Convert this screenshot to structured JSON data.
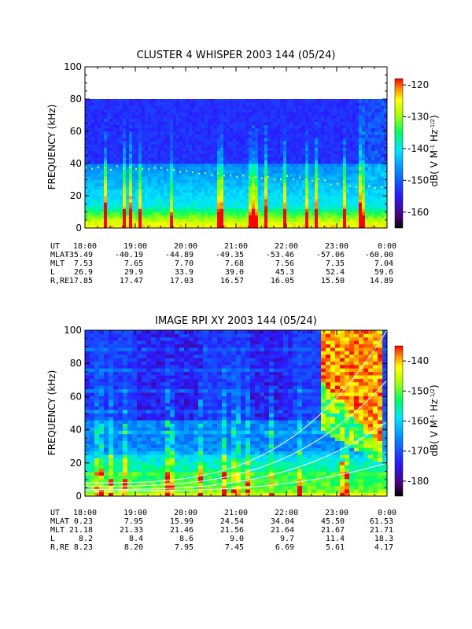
{
  "chart_data": [
    {
      "type": "heatmap",
      "title": "CLUSTER 4 WHISPER 2003 144 (05/24)",
      "ylabel": "FREQUENCY (kHz)",
      "colorbar_label": "dB( V M^-1 Hz^-1/2)",
      "colorbar_label_parts": [
        "dB( V M",
        "-1",
        " Hz",
        "-1/2",
        ")"
      ],
      "ylim": [
        0,
        100
      ],
      "data_ylim": [
        0,
        80
      ],
      "yticks": [
        "0",
        "20",
        "40",
        "60",
        "80",
        "100"
      ],
      "xlim": [
        "18:00",
        "0:00"
      ],
      "clim": [
        -165,
        -118
      ],
      "cticks": [
        "-120",
        "-130",
        "-140",
        "-150",
        "-160"
      ],
      "ephemeris": {
        "rows": [
          {
            "label": "UT",
            "values": [
              "18:00",
              "19:00",
              "20:00",
              "21:00",
              "22:00",
              "23:00",
              "0:00"
            ]
          },
          {
            "label": "MLAT",
            "values": [
              "-35.49",
              "-40.19",
              "-44.89",
              "-49.35",
              "-53.46",
              "-57.06",
              "-60.00"
            ]
          },
          {
            "label": "MLT",
            "values": [
              "7.53",
              "7.65",
              "7.70",
              "7.68",
              "7.56",
              "7.35",
              "7.04"
            ]
          },
          {
            "label": "L",
            "values": [
              "26.9",
              "29.9",
              "33.9",
              "39.0",
              "45.3",
              "52.4",
              "59.6"
            ]
          },
          {
            "label": "R,RE",
            "values": [
              "17.85",
              "17.47",
              "17.03",
              "16.57",
              "16.05",
              "15.50",
              "14.89"
            ]
          }
        ]
      },
      "features": {
        "dotted_line_khz": [
          38,
          37,
          35,
          33,
          31,
          28,
          24
        ],
        "low_freq_band_khz": 10
      }
    },
    {
      "type": "heatmap",
      "title": "IMAGE RPI XY 2003 144 (05/24)",
      "ylabel": "FREQUENCY (kHz)",
      "colorbar_label": "dB( V M^-1 Hz^-1/2)",
      "colorbar_label_parts": [
        "dB( V M",
        "-1",
        " Hz",
        "-1/2",
        ")"
      ],
      "ylim": [
        0,
        100
      ],
      "yticks": [
        "0",
        "20",
        "40",
        "60",
        "80",
        "100"
      ],
      "xlim": [
        "18:00",
        "0:00"
      ],
      "clim": [
        -185,
        -135
      ],
      "cticks": [
        "-140",
        "-150",
        "-160",
        "-170",
        "-180"
      ],
      "ephemeris": {
        "rows": [
          {
            "label": "UT",
            "values": [
              "18:00",
              "19:00",
              "20:00",
              "21:00",
              "22:00",
              "23:00",
              "0:00"
            ]
          },
          {
            "label": "MLAT",
            "values": [
              "0.23",
              "7.95",
              "15.99",
              "24.54",
              "34.04",
              "45.50",
              "61.53"
            ]
          },
          {
            "label": "MLT",
            "values": [
              "21.18",
              "21.33",
              "21.46",
              "21.56",
              "21.64",
              "21.67",
              "21.71"
            ]
          },
          {
            "label": "L",
            "values": [
              "8.2",
              "8.4",
              "8.6",
              "9.0",
              "9.7",
              "11.4",
              "18.3"
            ]
          },
          {
            "label": "R,RE",
            "values": [
              "8.23",
              "8.20",
              "7.95",
              "7.45",
              "6.69",
              "5.61",
              "4.17"
            ]
          }
        ]
      },
      "features": {
        "white_curves_khz_at_start": [
          3,
          4,
          6,
          8
        ],
        "white_curves_khz_at_end": [
          20,
          45,
          70,
          100
        ],
        "intense_region_ut": [
          "22:30",
          "23:50"
        ]
      }
    }
  ]
}
